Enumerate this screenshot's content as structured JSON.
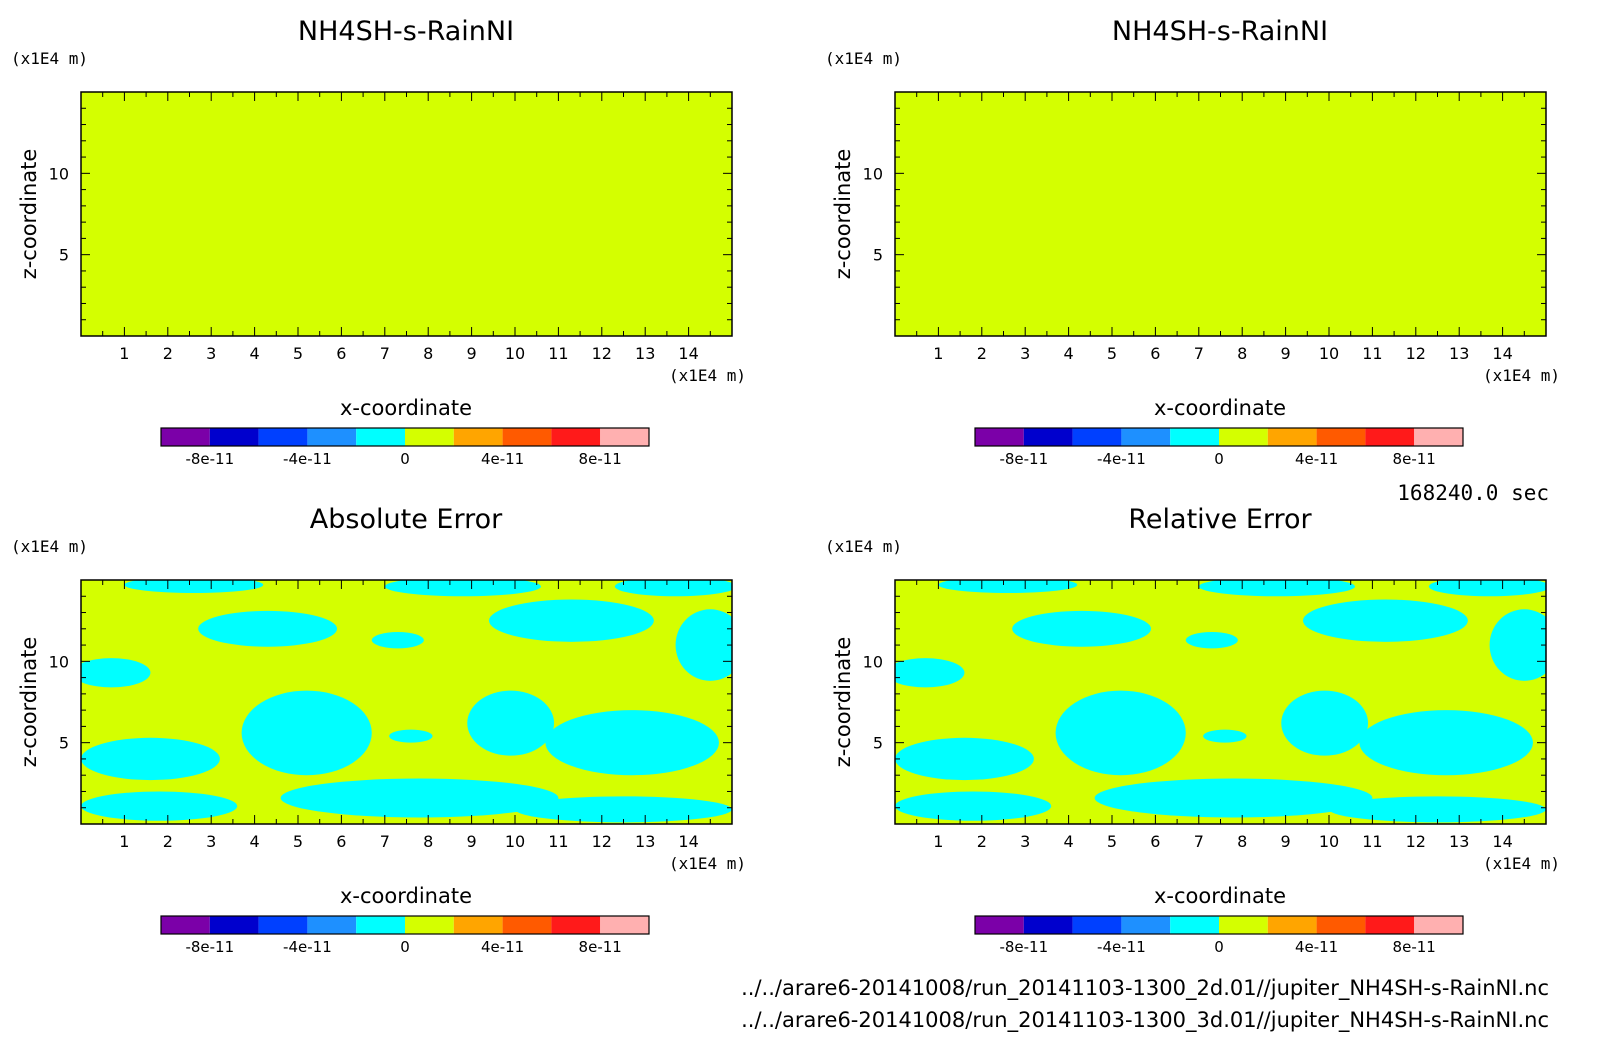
{
  "figure": {
    "time_label": "168240.0 sec",
    "file_paths": [
      "../../arare6-20141008/run_20141103-1300_2d.01//jupiter_NH4SH-s-RainNI.nc",
      "../../arare6-20141008/run_20141103-1300_3d.01//jupiter_NH4SH-s-RainNI.nc"
    ]
  },
  "colorbar": {
    "levels": [
      -1e-10,
      -8e-11,
      -6e-11,
      -4e-11,
      -2e-11,
      0,
      2e-11,
      4e-11,
      6e-11,
      8e-11,
      1e-10
    ],
    "colors": [
      "#7b00a8",
      "#0000cd",
      "#0040ff",
      "#1e90ff",
      "#00ffff",
      "#d4ff00",
      "#ffa500",
      "#ff5a00",
      "#ff1a1a",
      "#ffb0b0"
    ],
    "tick_labels": [
      "-8e-11",
      "-4e-11",
      "0",
      "4e-11",
      "8e-11"
    ]
  },
  "chart_data": [
    {
      "type": "heatmap",
      "title": "NH4SH-s-RainNI",
      "xlabel": "x-coordinate",
      "ylabel": "z-coordinate",
      "x_unit": "(x1E4 m)",
      "z_unit": "(x1E4 m)",
      "xlim": [
        0,
        15
      ],
      "zlim": [
        0,
        15
      ],
      "x_ticks": [
        "1",
        "2",
        "3",
        "4",
        "5",
        "6",
        "7",
        "8",
        "9",
        "10",
        "11",
        "12",
        "13",
        "14"
      ],
      "z_ticks": [
        "5",
        "10"
      ],
      "field": "uniform",
      "field_value": 0
    },
    {
      "type": "heatmap",
      "title": "NH4SH-s-RainNI",
      "xlabel": "x-coordinate",
      "ylabel": "z-coordinate",
      "x_unit": "(x1E4 m)",
      "z_unit": "(x1E4 m)",
      "xlim": [
        0,
        15
      ],
      "zlim": [
        0,
        15
      ],
      "x_ticks": [
        "1",
        "2",
        "3",
        "4",
        "5",
        "6",
        "7",
        "8",
        "9",
        "10",
        "11",
        "12",
        "13",
        "14"
      ],
      "z_ticks": [
        "5",
        "10"
      ],
      "field": "uniform",
      "field_value": 0
    },
    {
      "type": "heatmap",
      "title": "Absolute Error",
      "xlabel": "x-coordinate",
      "ylabel": "z-coordinate",
      "x_unit": "(x1E4 m)",
      "z_unit": "(x1E4 m)",
      "xlim": [
        0,
        15
      ],
      "zlim": [
        0,
        15
      ],
      "x_ticks": [
        "1",
        "2",
        "3",
        "4",
        "5",
        "6",
        "7",
        "8",
        "9",
        "10",
        "11",
        "12",
        "13",
        "14"
      ],
      "z_ticks": [
        "5",
        "10"
      ],
      "field": "mixed",
      "background_value": 0,
      "patch_value": -1e-11,
      "patches": [
        {
          "cx": 5.2,
          "cz": 5.6,
          "rx": 1.5,
          "rz": 2.6
        },
        {
          "cx": 7.6,
          "cz": 5.4,
          "rx": 0.5,
          "rz": 0.4
        },
        {
          "cx": 4.3,
          "cz": 12.0,
          "rx": 1.6,
          "rz": 1.1
        },
        {
          "cx": 7.3,
          "cz": 11.3,
          "rx": 0.6,
          "rz": 0.5
        },
        {
          "cx": 11.3,
          "cz": 12.5,
          "rx": 1.9,
          "rz": 1.3
        },
        {
          "cx": 1.6,
          "cz": 4.0,
          "rx": 1.6,
          "rz": 1.3
        },
        {
          "cx": 9.9,
          "cz": 6.2,
          "rx": 1.0,
          "rz": 2.0
        },
        {
          "cx": 12.7,
          "cz": 5.0,
          "rx": 2.0,
          "rz": 2.0
        },
        {
          "cx": 14.5,
          "cz": 11.0,
          "rx": 0.8,
          "rz": 2.2
        },
        {
          "cx": 7.8,
          "cz": 1.6,
          "rx": 3.2,
          "rz": 1.2
        },
        {
          "cx": 1.8,
          "cz": 1.1,
          "rx": 1.8,
          "rz": 0.9
        },
        {
          "cx": 12.5,
          "cz": 0.9,
          "rx": 2.5,
          "rz": 0.8
        },
        {
          "cx": 0.7,
          "cz": 9.3,
          "rx": 0.9,
          "rz": 0.9
        },
        {
          "cx": 2.6,
          "cz": 14.7,
          "rx": 1.6,
          "rz": 0.5
        },
        {
          "cx": 8.8,
          "cz": 14.6,
          "rx": 1.8,
          "rz": 0.6
        },
        {
          "cx": 13.7,
          "cz": 14.6,
          "rx": 1.4,
          "rz": 0.6
        }
      ]
    },
    {
      "type": "heatmap",
      "title": "Relative Error",
      "xlabel": "x-coordinate",
      "ylabel": "z-coordinate",
      "x_unit": "(x1E4 m)",
      "z_unit": "(x1E4 m)",
      "xlim": [
        0,
        15
      ],
      "zlim": [
        0,
        15
      ],
      "x_ticks": [
        "1",
        "2",
        "3",
        "4",
        "5",
        "6",
        "7",
        "8",
        "9",
        "10",
        "11",
        "12",
        "13",
        "14"
      ],
      "z_ticks": [
        "5",
        "10"
      ],
      "field": "mixed",
      "background_value": 0,
      "patch_value": -1e-11,
      "patches": [
        {
          "cx": 5.2,
          "cz": 5.6,
          "rx": 1.5,
          "rz": 2.6
        },
        {
          "cx": 7.6,
          "cz": 5.4,
          "rx": 0.5,
          "rz": 0.4
        },
        {
          "cx": 4.3,
          "cz": 12.0,
          "rx": 1.6,
          "rz": 1.1
        },
        {
          "cx": 7.3,
          "cz": 11.3,
          "rx": 0.6,
          "rz": 0.5
        },
        {
          "cx": 11.3,
          "cz": 12.5,
          "rx": 1.9,
          "rz": 1.3
        },
        {
          "cx": 1.6,
          "cz": 4.0,
          "rx": 1.6,
          "rz": 1.3
        },
        {
          "cx": 9.9,
          "cz": 6.2,
          "rx": 1.0,
          "rz": 2.0
        },
        {
          "cx": 12.7,
          "cz": 5.0,
          "rx": 2.0,
          "rz": 2.0
        },
        {
          "cx": 14.5,
          "cz": 11.0,
          "rx": 0.8,
          "rz": 2.2
        },
        {
          "cx": 7.8,
          "cz": 1.6,
          "rx": 3.2,
          "rz": 1.2
        },
        {
          "cx": 1.8,
          "cz": 1.1,
          "rx": 1.8,
          "rz": 0.9
        },
        {
          "cx": 12.5,
          "cz": 0.9,
          "rx": 2.5,
          "rz": 0.8
        },
        {
          "cx": 0.7,
          "cz": 9.3,
          "rx": 0.9,
          "rz": 0.9
        },
        {
          "cx": 2.6,
          "cz": 14.7,
          "rx": 1.6,
          "rz": 0.5
        },
        {
          "cx": 8.8,
          "cz": 14.6,
          "rx": 1.8,
          "rz": 0.6
        },
        {
          "cx": 13.7,
          "cz": 14.6,
          "rx": 1.4,
          "rz": 0.6
        }
      ]
    }
  ]
}
